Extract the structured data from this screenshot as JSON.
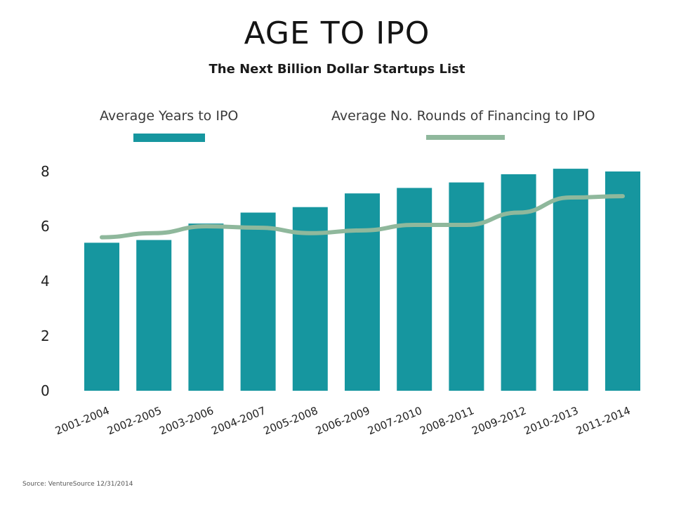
{
  "chart_data": {
    "type": "bar",
    "title": "AGE TO IPO",
    "subtitle": "The Next Billion Dollar Startups List",
    "categories": [
      "2001-2004",
      "2002-2005",
      "2003-2006",
      "2004-2007",
      "2005-2008",
      "2006-2009",
      "2007-2010",
      "2008-2011",
      "2009-2012",
      "2010-2013",
      "2011-2014"
    ],
    "series": [
      {
        "name": "Average Years to IPO",
        "type": "bar",
        "color": "#16969f",
        "values": [
          5.4,
          5.5,
          6.1,
          6.5,
          6.7,
          7.2,
          7.4,
          7.6,
          7.9,
          8.1,
          8.0
        ]
      },
      {
        "name": "Average No. Rounds of Financing to IPO",
        "type": "line",
        "color": "#8fb89c",
        "values": [
          5.6,
          5.75,
          6.0,
          5.95,
          5.75,
          5.85,
          6.05,
          6.05,
          6.5,
          7.05,
          7.1
        ]
      }
    ],
    "yticks": [
      0,
      2,
      4,
      6,
      8
    ],
    "ylim": [
      0,
      8.2
    ],
    "xlabel": "",
    "ylabel": "",
    "grid": false,
    "legend_position": "top"
  },
  "source": "Source: VentureSource 12/31/2014"
}
